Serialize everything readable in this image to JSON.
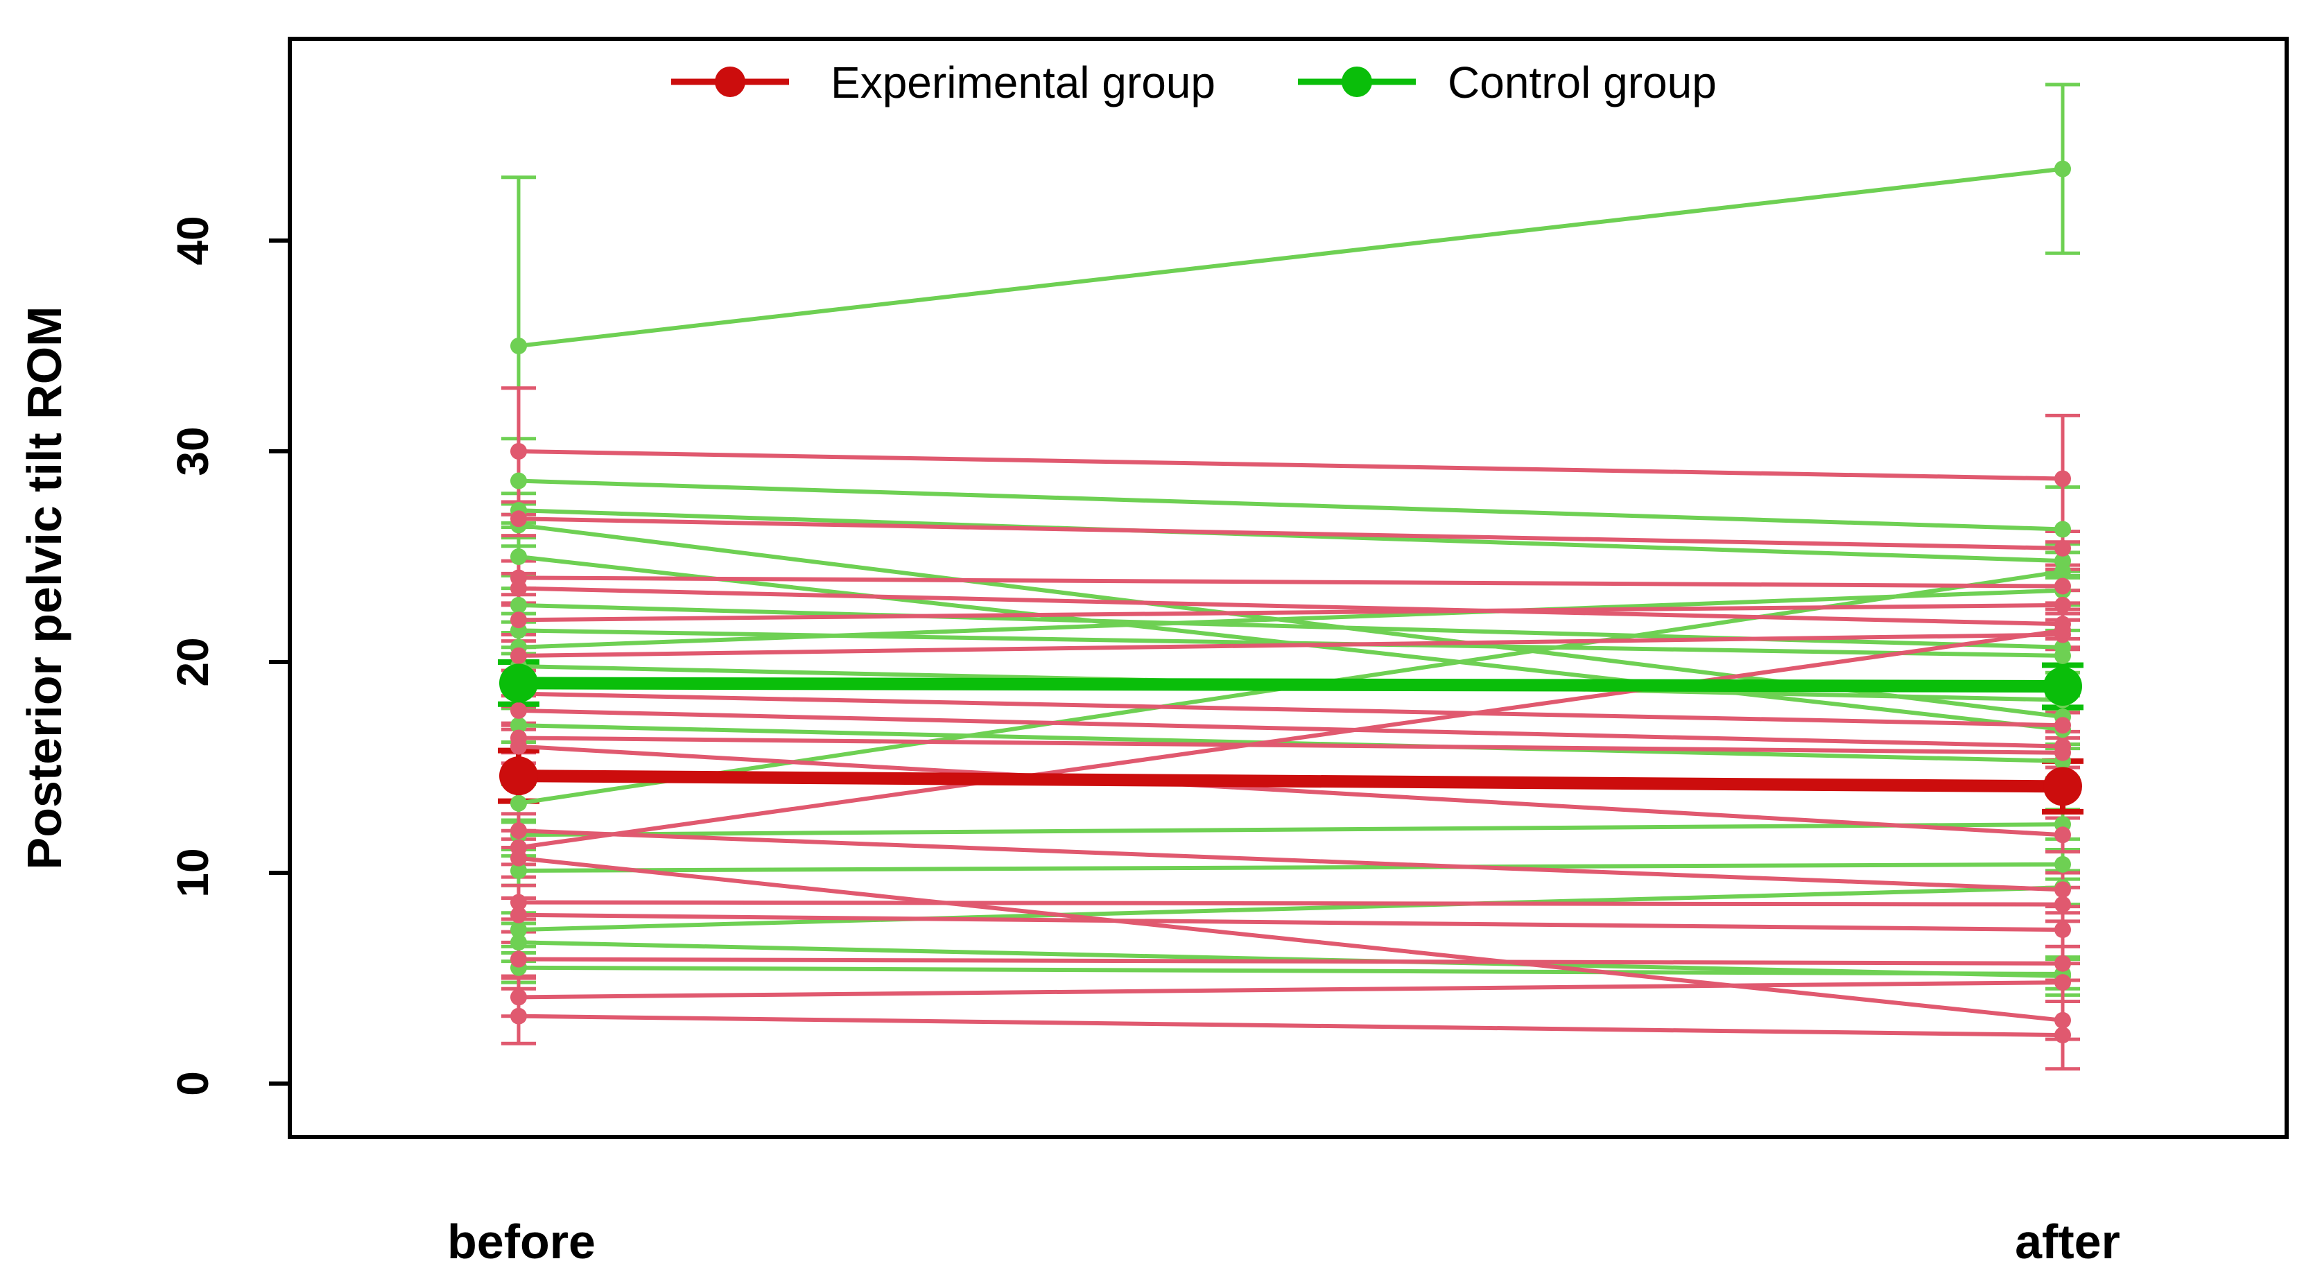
{
  "figure": {
    "background_color": "#ffffff",
    "box_color": "#000000"
  },
  "legend": {
    "items": [
      {
        "label": "Experimental group",
        "color": "#cc0d0d",
        "marker": "filled-circle-on-line"
      },
      {
        "label": "Control group",
        "color": "#0abe0a",
        "marker": "filled-circle-on-line"
      }
    ]
  },
  "axes": {
    "ylabel": "Posterior pelvic tilt ROM",
    "xlabel": "",
    "ytick_labels": [
      "0",
      "10",
      "20",
      "30",
      "40"
    ],
    "x_category_labels": [
      "before",
      "after"
    ]
  },
  "chart_data": {
    "type": "line",
    "title": "",
    "x_categories": [
      "before",
      "after"
    ],
    "ylabel": "Posterior pelvic tilt ROM",
    "xlabel": "",
    "yticks": [
      0,
      10,
      20,
      30,
      40
    ],
    "ylim": [
      -2.5,
      49.6
    ],
    "grid": false,
    "legend_position": "top-center",
    "description": "Paired before/after individual subject trajectories with group mean lines and error bars",
    "groups": [
      {
        "name": "Experimental group",
        "individual_color": "#e0596f",
        "mean_color": "#cc0d0d",
        "mean": {
          "before": 14.6,
          "after": 14.1,
          "err_before": 1.2,
          "err_after": 1.2
        },
        "individuals": [
          {
            "before": 30.0,
            "after": 28.7,
            "err_before": 3.0,
            "err_after": 3.0
          },
          {
            "before": 26.8,
            "after": 25.4,
            "err_before": 0.8,
            "err_after": 0.8
          },
          {
            "before": 24.0,
            "after": 23.6,
            "err_before": 0.8,
            "err_after": 0.8
          },
          {
            "before": 23.5,
            "after": 21.8,
            "err_before": 0.7,
            "err_after": 0.7
          },
          {
            "before": 22.0,
            "after": 22.7,
            "err_before": 0.7,
            "err_after": 0.7
          },
          {
            "before": 20.3,
            "after": 21.3,
            "err_before": 0.7,
            "err_after": 0.7
          },
          {
            "before": 18.5,
            "after": 17.0,
            "err_before": 0.6,
            "err_after": 0.6
          },
          {
            "before": 17.7,
            "after": 16.0,
            "err_before": 0.7,
            "err_after": 0.7
          },
          {
            "before": 16.4,
            "after": 15.7,
            "err_before": 0.7,
            "err_after": 0.7
          },
          {
            "before": 16.0,
            "after": 11.8,
            "err_before": 0.8,
            "err_after": 0.8
          },
          {
            "before": 12.0,
            "after": 9.2,
            "err_before": 0.8,
            "err_after": 0.8
          },
          {
            "before": 11.2,
            "after": 21.5,
            "err_before": 0.8,
            "err_after": 0.8
          },
          {
            "before": 10.7,
            "after": 3.0,
            "err_before": 0.9,
            "err_after": 0.9
          },
          {
            "before": 8.6,
            "after": 8.5,
            "err_before": 0.8,
            "err_after": 0.8
          },
          {
            "before": 8.0,
            "after": 7.3,
            "err_before": 0.8,
            "err_after": 0.8
          },
          {
            "before": 5.9,
            "after": 5.7,
            "err_before": 0.8,
            "err_after": 0.8
          },
          {
            "before": 4.1,
            "after": 4.8,
            "err_before": 0.9,
            "err_after": 0.9
          },
          {
            "before": 3.2,
            "after": 2.3,
            "err_before": 1.3,
            "err_after": 1.6
          }
        ]
      },
      {
        "name": "Control group",
        "individual_color": "#6ed053",
        "mean_color": "#0abe0a",
        "mean": {
          "before": 19.0,
          "after": 18.85,
          "err_before": 1.0,
          "err_after": 1.0
        },
        "individuals": [
          {
            "before": 35.0,
            "after": 43.4,
            "err_before": 8.0,
            "err_after": 4.0
          },
          {
            "before": 28.6,
            "after": 26.3,
            "err_before": 2.0,
            "err_after": 2.0
          },
          {
            "before": 27.2,
            "after": 24.8,
            "err_before": 0.8,
            "err_after": 0.8
          },
          {
            "before": 26.5,
            "after": 17.4,
            "err_before": 1.0,
            "err_after": 1.0
          },
          {
            "before": 25.0,
            "after": 16.8,
            "err_before": 0.9,
            "err_after": 0.9
          },
          {
            "before": 22.7,
            "after": 20.7,
            "err_before": 0.8,
            "err_after": 0.8
          },
          {
            "before": 21.5,
            "after": 20.3,
            "err_before": 0.8,
            "err_after": 0.8
          },
          {
            "before": 20.7,
            "after": 23.4,
            "err_before": 0.7,
            "err_after": 0.7
          },
          {
            "before": 19.8,
            "after": 18.2,
            "err_before": 0.6,
            "err_after": 0.6
          },
          {
            "before": 17.0,
            "after": 15.3,
            "err_before": 0.8,
            "err_after": 0.8
          },
          {
            "before": 13.3,
            "after": 24.3,
            "err_before": 0.9,
            "err_after": 0.9
          },
          {
            "before": 11.8,
            "after": 12.3,
            "err_before": 0.7,
            "err_after": 0.7
          },
          {
            "before": 10.1,
            "after": 10.4,
            "err_before": 0.7,
            "err_after": 0.7
          },
          {
            "before": 7.3,
            "after": 9.3,
            "err_before": 0.8,
            "err_after": 0.8
          },
          {
            "before": 6.7,
            "after": 5.1,
            "err_before": 0.9,
            "err_after": 0.9
          },
          {
            "before": 5.5,
            "after": 5.2,
            "err_before": 0.7,
            "err_after": 0.7
          }
        ]
      }
    ]
  }
}
